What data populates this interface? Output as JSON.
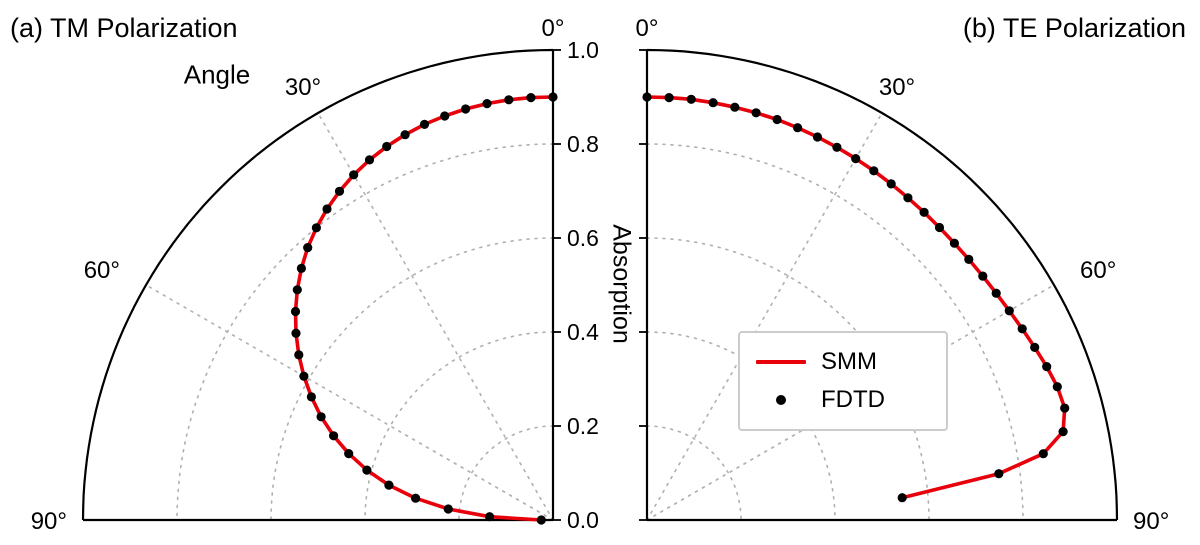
{
  "figure": {
    "background": "#ffffff",
    "angle_tick_labels": [
      "0°",
      "30°",
      "60°",
      "90°"
    ],
    "angle_tick_values": [
      0,
      30,
      60,
      90
    ],
    "radial_tick_labels": [
      "0.0",
      "0.2",
      "0.4",
      "0.6",
      "0.8",
      "1.0"
    ],
    "radial_tick_values": [
      0,
      0.2,
      0.4,
      0.6,
      0.8,
      1
    ],
    "colors": {
      "smm_line": "#e8000b",
      "fdtd_dot": "#000000",
      "grid": "#b0b0b0",
      "axis": "#000000",
      "legend_border": "#cccccc"
    },
    "legend": {
      "position": "center-right",
      "items": [
        {
          "label": "SMM",
          "marker": "line"
        },
        {
          "label": "FDTD",
          "marker": "dot"
        }
      ]
    }
  },
  "chart_data": [
    {
      "type": "line",
      "coordinate_system": "polar-quarter",
      "panel": "a",
      "title": "(a) TM Polarization",
      "angle_axis_label": "Angle",
      "radial_axis_label": "Absorption",
      "angle_ticks_deg": [
        0,
        30,
        60,
        90
      ],
      "radial_ticks": [
        0.0,
        0.2,
        0.4,
        0.6,
        0.8,
        1.0
      ],
      "radial_range": [
        0.0,
        1.0
      ],
      "grid": "dotted",
      "theta_deg": [
        0,
        3,
        6,
        9,
        12,
        15,
        18,
        21,
        24,
        27,
        30,
        33,
        36,
        39,
        42,
        45,
        48,
        51,
        54,
        57,
        60,
        63,
        66,
        69,
        72,
        75,
        78,
        81,
        84,
        87,
        90
      ],
      "series": [
        {
          "name": "SMM",
          "style": "line",
          "absorption": [
            0.9,
            0.9,
            0.899,
            0.897,
            0.894,
            0.89,
            0.885,
            0.878,
            0.87,
            0.86,
            0.848,
            0.834,
            0.818,
            0.8,
            0.78,
            0.757,
            0.732,
            0.705,
            0.676,
            0.645,
            0.612,
            0.577,
            0.54,
            0.5,
            0.457,
            0.41,
            0.357,
            0.296,
            0.224,
            0.135,
            0.025
          ]
        },
        {
          "name": "FDTD",
          "style": "scatter",
          "absorption": [
            0.9,
            0.9,
            0.899,
            0.897,
            0.894,
            0.89,
            0.885,
            0.878,
            0.87,
            0.86,
            0.848,
            0.834,
            0.818,
            0.8,
            0.78,
            0.757,
            0.732,
            0.705,
            0.676,
            0.645,
            0.612,
            0.577,
            0.54,
            0.5,
            0.457,
            0.41,
            0.357,
            0.296,
            0.224,
            0.135,
            0.025
          ]
        }
      ]
    },
    {
      "type": "line",
      "coordinate_system": "polar-quarter",
      "panel": "b",
      "title": "(b) TE Polarization",
      "angle_axis_label": "Angle",
      "radial_axis_label": "Absorption",
      "angle_ticks_deg": [
        0,
        30,
        60,
        90
      ],
      "radial_ticks": [
        0.0,
        0.2,
        0.4,
        0.6,
        0.8,
        1.0
      ],
      "radial_range": [
        0.0,
        1.0
      ],
      "grid": "dotted",
      "theta_deg": [
        0,
        3,
        6,
        9,
        12,
        15,
        18,
        21,
        24,
        27,
        30,
        33,
        36,
        39,
        42,
        45,
        48,
        51,
        54,
        57,
        60,
        63,
        66,
        69,
        72,
        75,
        78,
        80.5,
        82.5,
        85
      ],
      "series": [
        {
          "name": "SMM",
          "style": "line",
          "absorption": [
            0.9,
            0.9,
            0.9,
            0.899,
            0.898,
            0.897,
            0.896,
            0.894,
            0.892,
            0.89,
            0.888,
            0.886,
            0.884,
            0.882,
            0.881,
            0.88,
            0.88,
            0.881,
            0.883,
            0.886,
            0.89,
            0.896,
            0.903,
            0.911,
            0.918,
            0.92,
            0.905,
            0.855,
            0.755,
            0.545
          ]
        },
        {
          "name": "FDTD",
          "style": "scatter",
          "absorption": [
            0.9,
            0.9,
            0.9,
            0.899,
            0.898,
            0.897,
            0.896,
            0.894,
            0.892,
            0.89,
            0.888,
            0.886,
            0.884,
            0.882,
            0.881,
            0.88,
            0.88,
            0.881,
            0.883,
            0.886,
            0.89,
            0.896,
            0.903,
            0.911,
            0.918,
            0.92,
            0.905,
            0.855,
            0.755,
            0.545
          ]
        }
      ]
    }
  ]
}
